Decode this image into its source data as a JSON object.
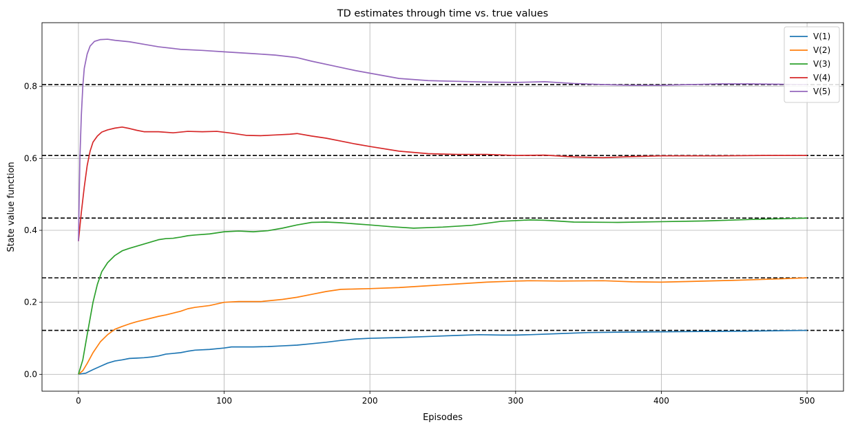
{
  "chart_data": {
    "type": "line",
    "title": "TD estimates through time vs. true values",
    "xlabel": "Episodes",
    "ylabel": "State value function",
    "xlim": [
      -25,
      525
    ],
    "ylim": [
      -0.047,
      0.977
    ],
    "xticks": [
      0,
      100,
      200,
      300,
      400,
      500
    ],
    "yticks": [
      0.0,
      0.2,
      0.4,
      0.6,
      0.8
    ],
    "xtick_labels": [
      "0",
      "100",
      "200",
      "300",
      "400",
      "500"
    ],
    "ytick_labels": [
      "0.0",
      "0.2",
      "0.4",
      "0.6",
      "0.8"
    ],
    "grid": true,
    "legend_position": "top-right",
    "reference_lines": {
      "style": "dashed",
      "color": "#000000",
      "values": [
        0.122,
        0.268,
        0.434,
        0.608,
        0.805
      ]
    },
    "series": [
      {
        "name": "V(1)",
        "color": "#1f77b4",
        "points": [
          [
            0,
            0.0
          ],
          [
            5,
            0.003
          ],
          [
            10,
            0.013
          ],
          [
            15,
            0.022
          ],
          [
            20,
            0.031
          ],
          [
            25,
            0.037
          ],
          [
            30,
            0.04
          ],
          [
            35,
            0.044
          ],
          [
            40,
            0.045
          ],
          [
            45,
            0.046
          ],
          [
            50,
            0.048
          ],
          [
            55,
            0.051
          ],
          [
            60,
            0.056
          ],
          [
            65,
            0.058
          ],
          [
            70,
            0.06
          ],
          [
            75,
            0.064
          ],
          [
            80,
            0.067
          ],
          [
            90,
            0.069
          ],
          [
            100,
            0.073
          ],
          [
            105,
            0.076
          ],
          [
            120,
            0.076
          ],
          [
            130,
            0.077
          ],
          [
            140,
            0.079
          ],
          [
            150,
            0.081
          ],
          [
            160,
            0.085
          ],
          [
            170,
            0.089
          ],
          [
            180,
            0.094
          ],
          [
            190,
            0.098
          ],
          [
            200,
            0.1
          ],
          [
            220,
            0.102
          ],
          [
            240,
            0.105
          ],
          [
            260,
            0.108
          ],
          [
            275,
            0.11
          ],
          [
            290,
            0.109
          ],
          [
            300,
            0.109
          ],
          [
            310,
            0.11
          ],
          [
            330,
            0.113
          ],
          [
            350,
            0.116
          ],
          [
            370,
            0.117
          ],
          [
            400,
            0.118
          ],
          [
            430,
            0.119
          ],
          [
            460,
            0.12
          ],
          [
            500,
            0.122
          ]
        ]
      },
      {
        "name": "V(2)",
        "color": "#ff7f0e",
        "points": [
          [
            0,
            0.0
          ],
          [
            3,
            0.01
          ],
          [
            6,
            0.03
          ],
          [
            10,
            0.06
          ],
          [
            15,
            0.09
          ],
          [
            20,
            0.11
          ],
          [
            25,
            0.125
          ],
          [
            30,
            0.133
          ],
          [
            35,
            0.14
          ],
          [
            40,
            0.146
          ],
          [
            45,
            0.151
          ],
          [
            50,
            0.156
          ],
          [
            55,
            0.161
          ],
          [
            60,
            0.165
          ],
          [
            65,
            0.17
          ],
          [
            70,
            0.175
          ],
          [
            75,
            0.182
          ],
          [
            80,
            0.186
          ],
          [
            90,
            0.191
          ],
          [
            100,
            0.2
          ],
          [
            110,
            0.202
          ],
          [
            125,
            0.202
          ],
          [
            140,
            0.208
          ],
          [
            150,
            0.214
          ],
          [
            160,
            0.222
          ],
          [
            170,
            0.23
          ],
          [
            180,
            0.236
          ],
          [
            190,
            0.237
          ],
          [
            200,
            0.238
          ],
          [
            220,
            0.241
          ],
          [
            240,
            0.246
          ],
          [
            260,
            0.251
          ],
          [
            280,
            0.256
          ],
          [
            300,
            0.259
          ],
          [
            310,
            0.26
          ],
          [
            330,
            0.259
          ],
          [
            360,
            0.26
          ],
          [
            380,
            0.257
          ],
          [
            400,
            0.256
          ],
          [
            420,
            0.258
          ],
          [
            450,
            0.261
          ],
          [
            480,
            0.265
          ],
          [
            500,
            0.268
          ]
        ]
      },
      {
        "name": "V(3)",
        "color": "#2ca02c",
        "points": [
          [
            0,
            0.0
          ],
          [
            3,
            0.04
          ],
          [
            6,
            0.11
          ],
          [
            10,
            0.2
          ],
          [
            13,
            0.25
          ],
          [
            16,
            0.285
          ],
          [
            20,
            0.31
          ],
          [
            25,
            0.33
          ],
          [
            30,
            0.343
          ],
          [
            35,
            0.35
          ],
          [
            40,
            0.356
          ],
          [
            45,
            0.362
          ],
          [
            50,
            0.368
          ],
          [
            55,
            0.374
          ],
          [
            60,
            0.377
          ],
          [
            65,
            0.378
          ],
          [
            70,
            0.381
          ],
          [
            75,
            0.385
          ],
          [
            80,
            0.387
          ],
          [
            90,
            0.39
          ],
          [
            100,
            0.396
          ],
          [
            110,
            0.398
          ],
          [
            120,
            0.396
          ],
          [
            130,
            0.399
          ],
          [
            140,
            0.406
          ],
          [
            150,
            0.415
          ],
          [
            160,
            0.422
          ],
          [
            170,
            0.423
          ],
          [
            180,
            0.421
          ],
          [
            190,
            0.418
          ],
          [
            200,
            0.415
          ],
          [
            215,
            0.41
          ],
          [
            230,
            0.406
          ],
          [
            250,
            0.409
          ],
          [
            270,
            0.414
          ],
          [
            290,
            0.425
          ],
          [
            310,
            0.429
          ],
          [
            320,
            0.428
          ],
          [
            340,
            0.423
          ],
          [
            370,
            0.422
          ],
          [
            400,
            0.424
          ],
          [
            430,
            0.426
          ],
          [
            460,
            0.43
          ],
          [
            500,
            0.434
          ]
        ]
      },
      {
        "name": "V(4)",
        "color": "#d62728",
        "points": [
          [
            0,
            0.37
          ],
          [
            2,
            0.45
          ],
          [
            4,
            0.52
          ],
          [
            6,
            0.58
          ],
          [
            8,
            0.62
          ],
          [
            10,
            0.645
          ],
          [
            13,
            0.662
          ],
          [
            16,
            0.673
          ],
          [
            20,
            0.679
          ],
          [
            25,
            0.684
          ],
          [
            30,
            0.687
          ],
          [
            35,
            0.683
          ],
          [
            40,
            0.678
          ],
          [
            45,
            0.674
          ],
          [
            55,
            0.674
          ],
          [
            65,
            0.671
          ],
          [
            75,
            0.675
          ],
          [
            85,
            0.674
          ],
          [
            95,
            0.675
          ],
          [
            105,
            0.67
          ],
          [
            115,
            0.664
          ],
          [
            125,
            0.663
          ],
          [
            135,
            0.665
          ],
          [
            145,
            0.667
          ],
          [
            150,
            0.669
          ],
          [
            160,
            0.662
          ],
          [
            170,
            0.656
          ],
          [
            180,
            0.648
          ],
          [
            190,
            0.64
          ],
          [
            200,
            0.633
          ],
          [
            220,
            0.62
          ],
          [
            240,
            0.613
          ],
          [
            260,
            0.611
          ],
          [
            280,
            0.611
          ],
          [
            300,
            0.608
          ],
          [
            320,
            0.609
          ],
          [
            340,
            0.604
          ],
          [
            360,
            0.602
          ],
          [
            380,
            0.605
          ],
          [
            400,
            0.607
          ],
          [
            440,
            0.607
          ],
          [
            470,
            0.608
          ],
          [
            500,
            0.608
          ]
        ]
      },
      {
        "name": "V(5)",
        "color": "#9467bd",
        "points": [
          [
            0,
            0.37
          ],
          [
            1,
            0.6
          ],
          [
            2,
            0.72
          ],
          [
            3,
            0.8
          ],
          [
            4,
            0.85
          ],
          [
            6,
            0.89
          ],
          [
            8,
            0.912
          ],
          [
            11,
            0.925
          ],
          [
            15,
            0.93
          ],
          [
            20,
            0.931
          ],
          [
            25,
            0.928
          ],
          [
            35,
            0.924
          ],
          [
            45,
            0.917
          ],
          [
            55,
            0.91
          ],
          [
            70,
            0.903
          ],
          [
            85,
            0.9
          ],
          [
            100,
            0.896
          ],
          [
            120,
            0.891
          ],
          [
            135,
            0.887
          ],
          [
            150,
            0.88
          ],
          [
            160,
            0.87
          ],
          [
            175,
            0.857
          ],
          [
            190,
            0.844
          ],
          [
            205,
            0.833
          ],
          [
            220,
            0.822
          ],
          [
            240,
            0.816
          ],
          [
            260,
            0.814
          ],
          [
            280,
            0.812
          ],
          [
            300,
            0.811
          ],
          [
            320,
            0.813
          ],
          [
            340,
            0.808
          ],
          [
            360,
            0.805
          ],
          [
            380,
            0.803
          ],
          [
            400,
            0.803
          ],
          [
            420,
            0.805
          ],
          [
            440,
            0.807
          ],
          [
            460,
            0.807
          ],
          [
            480,
            0.806
          ],
          [
            500,
            0.805
          ]
        ]
      }
    ]
  }
}
